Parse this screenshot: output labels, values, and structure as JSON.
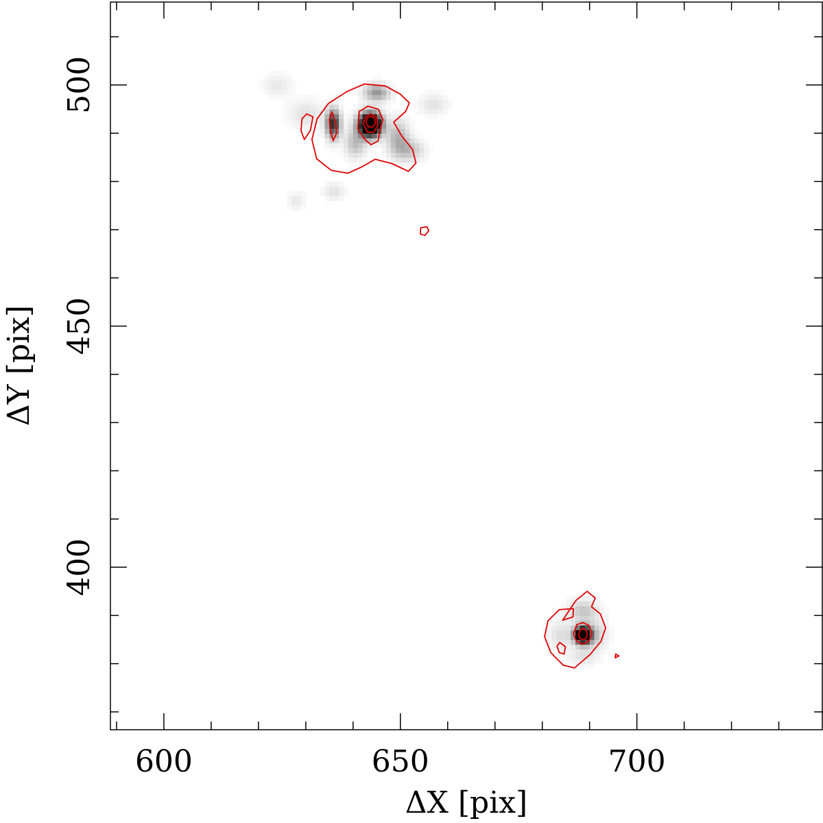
{
  "chart_data": {
    "type": "heatmap",
    "xlabel": "ΔX [pix]",
    "ylabel": "ΔY [pix]",
    "xlim": [
      588.7,
      739.2
    ],
    "ylim": [
      366.3,
      517.2
    ],
    "x_ticks_major": [
      600,
      650,
      700
    ],
    "y_ticks_major": [
      400,
      450,
      500
    ],
    "x_tick_labels": [
      "600",
      "650",
      "700"
    ],
    "y_tick_labels": [
      "400",
      "450",
      "500"
    ],
    "x_ticks_minor_step": 10,
    "y_ticks_minor_step": 10,
    "grid": false,
    "colormap": "gray_reversed",
    "contour_color": "#e00000",
    "sources": [
      {
        "x": 643.6,
        "y": 491.8,
        "peak": 1.0,
        "sigma": 1.6
      },
      {
        "x": 688.6,
        "y": 386.0,
        "peak": 0.85,
        "sigma": 1.2
      }
    ],
    "diffuse_blobs": [
      {
        "x": 635.8,
        "y": 492.0,
        "amp": 0.45,
        "sx": 1.0,
        "sy": 2.0
      },
      {
        "x": 645.0,
        "y": 498.5,
        "amp": 0.22,
        "sx": 1.8,
        "sy": 1.2
      },
      {
        "x": 649.5,
        "y": 489.0,
        "amp": 0.16,
        "sx": 1.6,
        "sy": 2.5
      },
      {
        "x": 652.0,
        "y": 486.5,
        "amp": 0.12,
        "sx": 2.0,
        "sy": 1.5
      },
      {
        "x": 640.5,
        "y": 488.0,
        "amp": 0.14,
        "sx": 1.5,
        "sy": 2.0
      },
      {
        "x": 630.0,
        "y": 494.0,
        "amp": 0.06,
        "sx": 2.5,
        "sy": 2.0
      },
      {
        "x": 624.0,
        "y": 500.0,
        "amp": 0.05,
        "sx": 2.0,
        "sy": 1.5
      },
      {
        "x": 636.0,
        "y": 478.0,
        "amp": 0.06,
        "sx": 1.5,
        "sy": 1.2
      },
      {
        "x": 628.0,
        "y": 476.0,
        "amp": 0.05,
        "sx": 1.2,
        "sy": 1.2
      },
      {
        "x": 657.0,
        "y": 496.0,
        "amp": 0.06,
        "sx": 2.0,
        "sy": 1.5
      },
      {
        "x": 688.6,
        "y": 391.0,
        "amp": 0.12,
        "sx": 2.2,
        "sy": 1.5
      },
      {
        "x": 691.0,
        "y": 386.0,
        "amp": 0.1,
        "sx": 1.8,
        "sy": 2.0
      },
      {
        "x": 684.0,
        "y": 386.0,
        "amp": 0.07,
        "sx": 1.8,
        "sy": 2.0
      },
      {
        "x": 688.6,
        "y": 381.5,
        "amp": 0.06,
        "sx": 2.0,
        "sy": 1.2
      }
    ],
    "contours": [
      {
        "level": "low",
        "points": [
          [
            638.8,
            498.7
          ],
          [
            642.4,
            500.2
          ],
          [
            646.8,
            499.8
          ],
          [
            650.0,
            498.1
          ],
          [
            651.9,
            496.3
          ],
          [
            651.1,
            494.5
          ],
          [
            648.6,
            492.3
          ],
          [
            650.3,
            489.4
          ],
          [
            652.6,
            486.6
          ],
          [
            653.3,
            483.8
          ],
          [
            651.7,
            482.1
          ],
          [
            648.2,
            483.7
          ],
          [
            644.7,
            484.6
          ],
          [
            641.8,
            483.0
          ],
          [
            638.9,
            481.7
          ],
          [
            635.4,
            482.3
          ],
          [
            632.3,
            484.7
          ],
          [
            631.3,
            488.7
          ],
          [
            632.4,
            493.0
          ],
          [
            634.8,
            496.2
          ]
        ]
      },
      {
        "level": "mid",
        "points": [
          [
            641.3,
            494.5
          ],
          [
            643.1,
            495.6
          ],
          [
            645.3,
            495.0
          ],
          [
            646.3,
            492.9
          ],
          [
            645.6,
            490.3
          ],
          [
            645.3,
            488.4
          ],
          [
            643.8,
            487.6
          ],
          [
            642.4,
            488.8
          ],
          [
            641.0,
            490.9
          ]
        ]
      },
      {
        "level": "mid2",
        "points": [
          [
            642.2,
            492.0
          ],
          [
            642.6,
            493.4
          ],
          [
            643.8,
            494.0
          ],
          [
            645.0,
            493.3
          ],
          [
            645.2,
            491.6
          ],
          [
            644.4,
            490.2
          ],
          [
            643.0,
            490.2
          ]
        ]
      },
      {
        "level": "high",
        "points": [
          [
            642.7,
            492.3
          ],
          [
            643.1,
            493.2
          ],
          [
            643.8,
            493.5
          ],
          [
            644.6,
            493.1
          ],
          [
            644.7,
            492.0
          ],
          [
            644.2,
            491.3
          ],
          [
            643.2,
            491.3
          ]
        ]
      },
      {
        "level": "islet",
        "points": [
          [
            635.5,
            494.4
          ],
          [
            636.3,
            492.3
          ],
          [
            636.5,
            490.0
          ],
          [
            635.8,
            488.4
          ],
          [
            635.2,
            490.6
          ],
          [
            635.0,
            492.9
          ]
        ]
      },
      {
        "level": "islet",
        "points": [
          [
            630.2,
            494.0
          ],
          [
            631.5,
            493.4
          ],
          [
            631.0,
            490.6
          ],
          [
            629.7,
            488.7
          ],
          [
            629.0,
            490.5
          ],
          [
            629.2,
            493.0
          ]
        ]
      },
      {
        "level": "islet",
        "points": [
          [
            654.3,
            470.4
          ],
          [
            655.6,
            470.6
          ],
          [
            656.0,
            469.8
          ],
          [
            655.2,
            468.8
          ],
          [
            654.2,
            469.1
          ]
        ]
      },
      {
        "level": "low",
        "points": [
          [
            687.1,
            393.1
          ],
          [
            689.5,
            395.0
          ],
          [
            691.2,
            393.6
          ],
          [
            690.4,
            391.8
          ],
          [
            692.3,
            390.3
          ],
          [
            693.4,
            387.4
          ],
          [
            692.4,
            384.6
          ],
          [
            690.1,
            381.9
          ],
          [
            686.8,
            379.1
          ],
          [
            684.4,
            379.7
          ],
          [
            681.8,
            382.3
          ],
          [
            680.5,
            385.6
          ],
          [
            681.2,
            388.9
          ],
          [
            683.6,
            391.2
          ],
          [
            686.6,
            391.4
          ],
          [
            686.5,
            389.7
          ],
          [
            684.3,
            389.0
          ]
        ]
      },
      {
        "level": "mid",
        "points": [
          [
            687.3,
            388.1
          ],
          [
            688.6,
            388.5
          ],
          [
            689.9,
            387.9
          ],
          [
            690.5,
            386.3
          ],
          [
            689.9,
            384.7
          ],
          [
            688.5,
            384.0
          ],
          [
            687.2,
            384.7
          ],
          [
            686.6,
            386.2
          ]
        ]
      },
      {
        "level": "high",
        "points": [
          [
            688.0,
            387.0
          ],
          [
            688.6,
            387.3
          ],
          [
            689.3,
            386.9
          ],
          [
            689.5,
            386.0
          ],
          [
            689.2,
            385.2
          ],
          [
            688.5,
            384.9
          ],
          [
            687.9,
            385.3
          ],
          [
            687.7,
            386.1
          ]
        ]
      },
      {
        "level": "islet",
        "points": [
          [
            683.7,
            384.4
          ],
          [
            684.9,
            383.5
          ],
          [
            684.6,
            382.0
          ],
          [
            683.6,
            382.3
          ],
          [
            683.1,
            383.6
          ]
        ]
      },
      {
        "level": "islet",
        "points": [
          [
            695.5,
            382.0
          ],
          [
            696.2,
            381.6
          ],
          [
            695.4,
            381.2
          ]
        ]
      }
    ]
  }
}
